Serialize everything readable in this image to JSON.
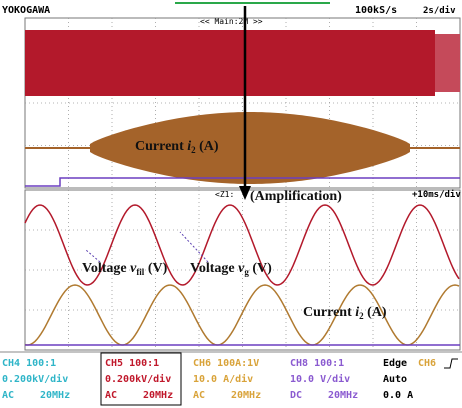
{
  "header": {
    "brand": "YOKOGAWA",
    "sample_rate": "100kS/s",
    "time_div": "2s/div",
    "zoom_label": "<< Main:2M >>"
  },
  "zoom": {
    "label": "<Z1:",
    "caption": "(Amplification)",
    "time_div": "+10ms/div"
  },
  "annotations": {
    "current_main": {
      "prefix": "Current ",
      "var": "i",
      "sub": "2",
      "unit": " (A)"
    },
    "voltage_fil": {
      "prefix": "Voltage ",
      "var": "v",
      "sub": "fil",
      "unit": " (V)"
    },
    "voltage_g": {
      "prefix": "Voltage ",
      "var": "v",
      "sub": "g",
      "unit": " (V)"
    },
    "current_zoom": {
      "prefix": "Current ",
      "var": "i",
      "sub": "2",
      "unit": " (A)"
    }
  },
  "channels": [
    {
      "name": "CH4 100:1",
      "scale": "0.200kV/div",
      "coupling": "AC",
      "bandwidth": "20MHz"
    },
    {
      "name": "CH5 100:1",
      "scale": "0.200kV/div",
      "coupling": "AC",
      "bandwidth": "20MHz"
    },
    {
      "name": "CH6 100A:1V",
      "scale": "10.0 A/div",
      "coupling": "AC",
      "bandwidth": "20MHz"
    },
    {
      "name": "CH8 100:1",
      "scale": "10.0 V/div",
      "coupling": "DC",
      "bandwidth": "20MHz"
    }
  ],
  "trigger": {
    "mode": "Edge",
    "source": "CH6",
    "state": "Auto",
    "level": "0.0 A"
  }
}
